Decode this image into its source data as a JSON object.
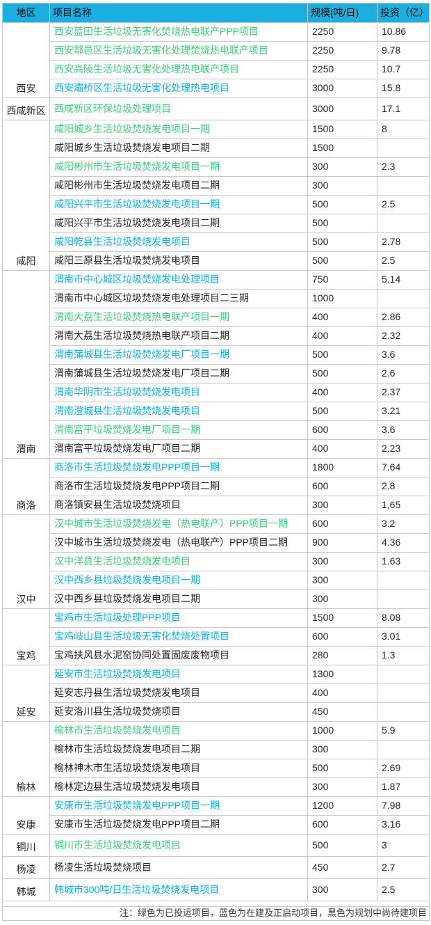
{
  "colors": {
    "header_bg": "#1BAEE0",
    "green": "#3FCB7B",
    "blue": "#0AB1F0",
    "black_text": "#262626",
    "border": "#C9C9C9",
    "note_text": "#3A3A3A"
  },
  "chart_data": {
    "type": "table",
    "title": "",
    "columns": [
      "地区",
      "项目名称",
      "规模(吨/日)",
      "投资（亿）"
    ],
    "status_legend": {
      "green": "已投运项目",
      "blue": "在建及正启动项目",
      "black": "规划中尚待建项目"
    },
    "note": "注：绿色为已投运项目，蓝色为在建及正启动项目，黑色为规划中尚待建项目",
    "groups": [
      {
        "region": "西安",
        "projects": [
          {
            "name": "西安蓝田生活垃圾无害化焚烧热电联产PPP项目",
            "scale": "2250",
            "investment": "10.86",
            "status": "green"
          },
          {
            "name": "西安鄠邑区生活垃圾无害化处理焚烧热电联产项目",
            "scale": "2250",
            "investment": "9.78",
            "status": "green"
          },
          {
            "name": "西安高陵生活垃圾无害化处理热电联产项目",
            "scale": "2250",
            "investment": "10.7",
            "status": "green"
          },
          {
            "name": "西安灞桥区生活垃圾无害化处理热电项目",
            "scale": "3000",
            "investment": "15.8",
            "status": "blue"
          }
        ]
      },
      {
        "region": "西咸新区",
        "projects": [
          {
            "name": "西咸新区环保垃圾处理项目",
            "scale": "3000",
            "investment": "17.1",
            "status": "green"
          }
        ]
      },
      {
        "region": "咸阳",
        "projects": [
          {
            "name": "咸阳城乡生活垃圾焚烧发电项目一期",
            "scale": "1500",
            "investment": "8",
            "status": "green"
          },
          {
            "name": "咸阳城乡生活垃圾焚烧发电项目二期",
            "scale": "1500",
            "investment": "",
            "status": "black"
          },
          {
            "name": "咸阳彬州市生活垃圾焚烧发电项目一期",
            "scale": "300",
            "investment": "2.3",
            "status": "green"
          },
          {
            "name": "咸阳彬州市生活垃圾焚烧发电项目二期",
            "scale": "300",
            "investment": "",
            "status": "black"
          },
          {
            "name": "咸阳兴平市生活垃圾焚烧发电项目一期",
            "scale": "500",
            "investment": "2.5",
            "status": "blue"
          },
          {
            "name": "咸阳兴平市生活垃圾焚烧发电项目二期",
            "scale": "500",
            "investment": "",
            "status": "black"
          },
          {
            "name": "咸阳乾县生活垃圾焚烧发电项目",
            "scale": "500",
            "investment": "2.78",
            "status": "blue"
          },
          {
            "name": "咸阳三原县生活垃圾焚烧发电项目",
            "scale": "500",
            "investment": "2.5",
            "status": "black"
          }
        ]
      },
      {
        "region": "渭南",
        "projects": [
          {
            "name": "渭南市中心城区垃圾焚烧发电处理项目",
            "scale": "750",
            "investment": "5.14",
            "status": "blue"
          },
          {
            "name": "渭南市中心城区垃圾焚烧发电处理项目二三期",
            "scale": "1000",
            "investment": "",
            "status": "black"
          },
          {
            "name": "渭南大荔生活垃圾焚烧热电联产项目一期",
            "scale": "400",
            "investment": "2.86",
            "status": "green"
          },
          {
            "name": "渭南大荔生活垃圾焚烧热电联产项目二期",
            "scale": "400",
            "investment": "2.32",
            "status": "black"
          },
          {
            "name": "渭南蒲城县生活垃圾焚烧发电厂项目一期",
            "scale": "500",
            "investment": "3.6",
            "status": "blue"
          },
          {
            "name": "渭南蒲城县生活垃圾焚烧发电厂项目二期",
            "scale": "500",
            "investment": "2.6",
            "status": "black"
          },
          {
            "name": "渭南华阴市生活垃圾焚烧发电项目",
            "scale": "400",
            "investment": "2.37",
            "status": "blue"
          },
          {
            "name": "渭南澄城县生活垃圾焚烧发电项目",
            "scale": "500",
            "investment": "3.21",
            "status": "blue"
          },
          {
            "name": "渭南富平垃圾焚烧发电厂项目一期",
            "scale": "600",
            "investment": "3.6",
            "status": "green"
          },
          {
            "name": "渭南富平垃圾焚烧发电厂项目二期",
            "scale": "400",
            "investment": "2.23",
            "status": "black"
          }
        ]
      },
      {
        "region": "商洛",
        "projects": [
          {
            "name": "商洛市生活垃圾焚烧发电PPP项目一期",
            "scale": "1800",
            "investment": "7.64",
            "status": "blue"
          },
          {
            "name": "商洛市生活垃圾焚烧发电PPP项目二期",
            "scale": "600",
            "investment": "2.8",
            "status": "black"
          },
          {
            "name": "商洛镇安县生活垃圾焚烧项目",
            "scale": "300",
            "investment": "1,65",
            "status": "black"
          }
        ]
      },
      {
        "region": "汉中",
        "projects": [
          {
            "name": "汉中城市生活垃圾焚烧发电（热电联产）PPP项目一期",
            "scale": "600",
            "investment": "3.2",
            "status": "green"
          },
          {
            "name": "汉中城市生活垃圾焚烧发电（热电联产）PPP项目二期",
            "scale": "900",
            "investment": "4.36",
            "status": "black"
          },
          {
            "name": "汉中洋县生活垃圾焚烧发电项目",
            "scale": "300",
            "investment": "1.63",
            "status": "green"
          },
          {
            "name": "汉中西乡县垃圾焚烧发电项目一期",
            "scale": "300",
            "investment": "",
            "status": "blue"
          },
          {
            "name": "汉中西乡县垃圾焚烧发电项目二期",
            "scale": "300",
            "investment": "",
            "status": "black"
          }
        ]
      },
      {
        "region": "宝鸡",
        "projects": [
          {
            "name": "宝鸡市生活垃圾处理PPP项目",
            "scale": "1500",
            "investment": "8.08",
            "status": "blue"
          },
          {
            "name": "宝鸡岐山县生活垃圾无害化焚烧处置项目",
            "scale": "600",
            "investment": "3.01",
            "status": "blue"
          },
          {
            "name": "宝鸡扶风县水泥窑协同处置固废废物项目",
            "scale": "280",
            "investment": "1.3",
            "status": "black"
          }
        ]
      },
      {
        "region": "延安",
        "projects": [
          {
            "name": "延安市生活垃圾焚烧发电项目",
            "scale": "1300",
            "investment": "",
            "status": "blue"
          },
          {
            "name": "延安志丹县生活垃圾焚烧发电项目",
            "scale": "400",
            "investment": "",
            "status": "black"
          },
          {
            "name": "延安洛川县生活垃圾焚烧项目",
            "scale": "450",
            "investment": "",
            "status": "black"
          }
        ]
      },
      {
        "region": "榆林",
        "projects": [
          {
            "name": "榆林市生活垃圾焚烧发电项目",
            "scale": "1000",
            "investment": "5.9",
            "status": "green"
          },
          {
            "name": "榆林市生活垃圾焚烧发电项目二期",
            "scale": "300",
            "investment": "",
            "status": "black"
          },
          {
            "name": "榆林神木市生活垃圾焚烧发电项目",
            "scale": "500",
            "investment": "2.69",
            "status": "black"
          },
          {
            "name": "榆林定边县生活垃圾焚烧发电项目",
            "scale": "300",
            "investment": "1.87",
            "status": "black"
          }
        ]
      },
      {
        "region": "安康",
        "projects": [
          {
            "name": "安康市生活垃圾焚烧发电PPP项目一期",
            "scale": "1200",
            "investment": "7.98",
            "status": "blue"
          },
          {
            "name": "安康市生活垃圾焚烧发电PPP项目二期",
            "scale": "600",
            "investment": "3.16",
            "status": "black"
          }
        ]
      },
      {
        "region": "铜川",
        "projects": [
          {
            "name": "铜川市生活垃圾焚烧发电项目",
            "scale": "500",
            "investment": "3",
            "status": "green"
          }
        ]
      },
      {
        "region": "杨凌",
        "projects": [
          {
            "name": "杨凌生活垃圾焚烧项目",
            "scale": "450",
            "investment": "2.7",
            "status": "black"
          }
        ]
      },
      {
        "region": "韩城",
        "projects": [
          {
            "name": "韩城市300吨/日生活垃圾焚烧发电项目",
            "scale": "300",
            "investment": "2.5",
            "status": "blue"
          }
        ]
      }
    ]
  }
}
